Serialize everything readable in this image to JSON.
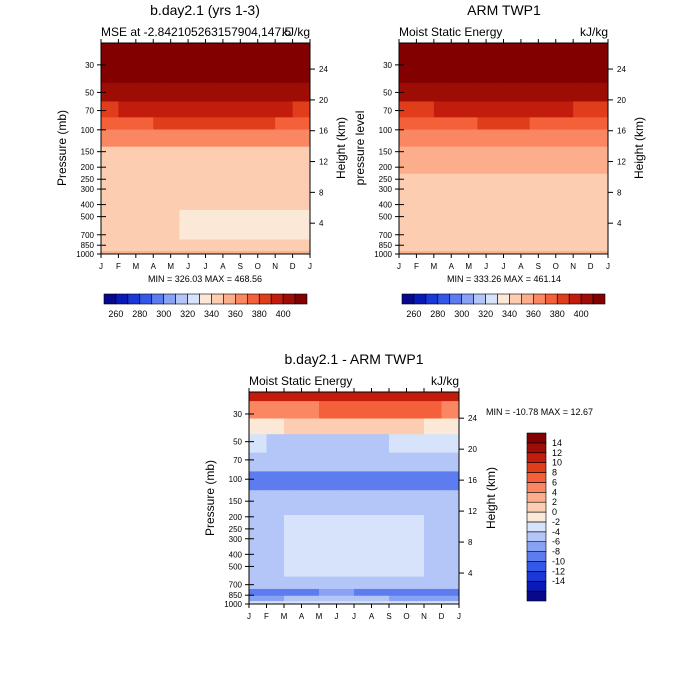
{
  "figure": {
    "panels": [
      {
        "id": "top-left",
        "title": "b.day2.1 (yrs 1-3)",
        "subtitle_left": "MSE at -2.842105263157904,147.5",
        "subtitle_right": "kJ/kg",
        "ylabel_left": "Pressure (mb)",
        "ylabel_right": "Height (km)",
        "minmax": "MIN = 326.03  MAX = 468.56"
      },
      {
        "id": "top-right",
        "title": "ARM TWP1",
        "subtitle_left": "Moist Static Energy",
        "subtitle_right": "kJ/kg",
        "ylabel_left": "pressure level",
        "ylabel_right": "Height (km)",
        "minmax": "MIN = 333.26  MAX = 461.14"
      },
      {
        "id": "bottom",
        "title": "b.day2.1 - ARM TWP1",
        "subtitle_left": "Moist Static Energy",
        "subtitle_right": "kJ/kg",
        "ylabel_left": "Pressure (mb)",
        "ylabel_right": "Height (km)",
        "minmax": "MIN = -10.78  MAX =  12.67"
      }
    ]
  },
  "chart_data": [
    {
      "type": "heatmap",
      "title": "b.day2.1 (yrs 1-3)",
      "subtitle": "MSE at -2.842105263157904,147.5",
      "units": "kJ/kg",
      "xlabel": "",
      "ylabel": "Pressure (mb)",
      "ylabel_right": "Height (km)",
      "x": [
        "J",
        "F",
        "M",
        "A",
        "M",
        "J",
        "J",
        "A",
        "S",
        "O",
        "N",
        "D",
        "J"
      ],
      "pressure_ticks": [
        30,
        50,
        70,
        100,
        150,
        200,
        250,
        300,
        400,
        500,
        700,
        850,
        1000
      ],
      "height_ticks_km": [
        4,
        8,
        12,
        16,
        20,
        24
      ],
      "ylim_mb": [
        20,
        1000
      ],
      "levels_mb": [
        20,
        35,
        50,
        70,
        90,
        110,
        170,
        300,
        650,
        900,
        1000
      ],
      "month_anchors": [
        0,
        3,
        6,
        9,
        12
      ],
      "values": [
        [
          468,
          468,
          468,
          468,
          468
        ],
        [
          430,
          430,
          430,
          430,
          430
        ],
        [
          396,
          397,
          399,
          397,
          396
        ],
        [
          379,
          382,
          384,
          382,
          379
        ],
        [
          368,
          370,
          372,
          371,
          368
        ],
        [
          352,
          354,
          355,
          354,
          352
        ],
        [
          338,
          339,
          339,
          339,
          338
        ],
        [
          333,
          333,
          333,
          333,
          333
        ],
        [
          330,
          331,
          329,
          328,
          330
        ],
        [
          333,
          333,
          333,
          332,
          333
        ],
        [
          341,
          341,
          341,
          341,
          341
        ]
      ],
      "minmax": "MIN = 326.03  MAX = 468.56",
      "colorbar": {
        "levels": [
          250,
          260,
          270,
          280,
          290,
          300,
          310,
          320,
          330,
          340,
          350,
          360,
          370,
          380,
          390,
          400
        ],
        "labels": [
          "260",
          "280",
          "300",
          "320",
          "340",
          "360",
          "380",
          "400"
        ],
        "colors": [
          "#08088c",
          "#0a1ab8",
          "#1a38d8",
          "#3358e8",
          "#5d7cf0",
          "#8aa2f5",
          "#b4c5f8",
          "#d6e3fa",
          "#fbe8d6",
          "#fccdb0",
          "#fcae8c",
          "#fa8762",
          "#f3603a",
          "#e03e1a",
          "#c21c0c",
          "#9e0c06",
          "#830000"
        ]
      }
    },
    {
      "type": "heatmap",
      "title": "ARM TWP1",
      "subtitle": "Moist Static Energy",
      "units": "kJ/kg",
      "xlabel": "",
      "ylabel": "pressure level",
      "ylabel_right": "Height (km)",
      "x": [
        "J",
        "F",
        "M",
        "A",
        "M",
        "J",
        "J",
        "A",
        "S",
        "O",
        "N",
        "D",
        "J"
      ],
      "pressure_ticks": [
        30,
        50,
        70,
        100,
        150,
        200,
        250,
        300,
        400,
        500,
        700,
        850,
        1000
      ],
      "height_ticks_km": [
        4,
        8,
        12,
        16,
        20,
        24
      ],
      "ylim_mb": [
        20,
        1000
      ],
      "levels_mb": [
        20,
        35,
        50,
        70,
        90,
        110,
        170,
        300,
        650,
        900,
        1000
      ],
      "month_anchors": [
        0,
        3,
        6,
        9,
        12
      ],
      "values": [
        [
          461,
          461,
          461,
          461,
          461
        ],
        [
          425,
          425,
          425,
          425,
          425
        ],
        [
          394,
          396,
          398,
          396,
          394
        ],
        [
          378,
          381,
          383,
          381,
          378
        ],
        [
          366,
          369,
          371,
          369,
          366
        ],
        [
          351,
          353,
          354,
          353,
          351
        ],
        [
          342,
          343,
          343,
          342,
          342
        ],
        [
          337,
          339,
          340,
          338,
          337
        ],
        [
          334,
          336,
          335,
          334,
          334
        ],
        [
          336,
          337,
          337,
          336,
          336
        ],
        [
          344,
          343,
          343,
          344,
          344
        ]
      ],
      "minmax": "MIN = 333.26  MAX = 461.14",
      "colorbar": {
        "levels": [
          250,
          260,
          270,
          280,
          290,
          300,
          310,
          320,
          330,
          340,
          350,
          360,
          370,
          380,
          390,
          400
        ],
        "labels": [
          "260",
          "280",
          "300",
          "320",
          "340",
          "360",
          "380",
          "400"
        ],
        "colors": [
          "#08088c",
          "#0a1ab8",
          "#1a38d8",
          "#3358e8",
          "#5d7cf0",
          "#8aa2f5",
          "#b4c5f8",
          "#d6e3fa",
          "#fbe8d6",
          "#fccdb0",
          "#fcae8c",
          "#fa8762",
          "#f3603a",
          "#e03e1a",
          "#c21c0c",
          "#9e0c06",
          "#830000"
        ]
      }
    },
    {
      "type": "heatmap",
      "title": "b.day2.1 - ARM TWP1",
      "subtitle": "Moist Static Energy",
      "units": "kJ/kg",
      "xlabel": "",
      "ylabel": "Pressure (mb)",
      "ylabel_right": "Height (km)",
      "x": [
        "J",
        "F",
        "M",
        "A",
        "M",
        "J",
        "J",
        "A",
        "S",
        "O",
        "N",
        "D",
        "J"
      ],
      "pressure_ticks": [
        30,
        50,
        70,
        100,
        150,
        200,
        250,
        300,
        400,
        500,
        700,
        850,
        1000
      ],
      "height_ticks_km": [
        4,
        8,
        12,
        16,
        20,
        24
      ],
      "ylim_mb": [
        20,
        1000
      ],
      "levels_mb": [
        20,
        28,
        38,
        50,
        75,
        100,
        150,
        250,
        400,
        520,
        700,
        820,
        900,
        1000
      ],
      "month_anchors": [
        0,
        2,
        4,
        6,
        8,
        10,
        12
      ],
      "values": [
        [
          12,
          12,
          11,
          12,
          13,
          12,
          12
        ],
        [
          5,
          6,
          7,
          8,
          8,
          9,
          5
        ],
        [
          0,
          1,
          2,
          2,
          2,
          1,
          0
        ],
        [
          -2,
          -4,
          -4,
          -4,
          -3,
          -3,
          -2
        ],
        [
          -5,
          -5,
          -5,
          -5,
          -5,
          -5,
          -5
        ],
        [
          -7,
          -9,
          -8,
          -8,
          -7,
          -8,
          -7
        ],
        [
          -5,
          -5,
          -5,
          -5,
          -5,
          -5,
          -5
        ],
        [
          -4,
          -3,
          -3,
          -3,
          -3,
          -3,
          -4
        ],
        [
          -4,
          -3,
          -3,
          -2,
          -3,
          -3,
          -4
        ],
        [
          -4,
          -3,
          -3,
          -3,
          -3,
          -3,
          -4
        ],
        [
          -5,
          -4,
          -4,
          -4,
          -4,
          -4,
          -5
        ],
        [
          -8,
          -8,
          -7,
          -7,
          -8,
          -8,
          -8
        ],
        [
          -6,
          -5,
          -5,
          -5,
          -5,
          -6,
          -6
        ],
        [
          -2,
          -2,
          -2,
          -2,
          -2,
          -2,
          -2
        ]
      ],
      "minmax": "MIN = -10.78  MAX =  12.67",
      "colorbar": {
        "levels": [
          -15,
          -13,
          -11,
          -9,
          -7,
          -5,
          -3,
          -1,
          1,
          3,
          5,
          7,
          9,
          11,
          13,
          15
        ],
        "labels": [
          "14",
          "12",
          "10",
          "8",
          "6",
          "4",
          "2",
          "0",
          "-2",
          "-4",
          "-6",
          "-8",
          "-10",
          "-12",
          "-14"
        ],
        "colors": [
          "#08088c",
          "#0a1ab8",
          "#1a38d8",
          "#3358e8",
          "#5d7cf0",
          "#8aa2f5",
          "#b4c5f8",
          "#d6e3fa",
          "#fbe8d6",
          "#fccdb0",
          "#fcae8c",
          "#fa8762",
          "#f3603a",
          "#e03e1a",
          "#c21c0c",
          "#9e0c06",
          "#830000"
        ]
      }
    }
  ]
}
